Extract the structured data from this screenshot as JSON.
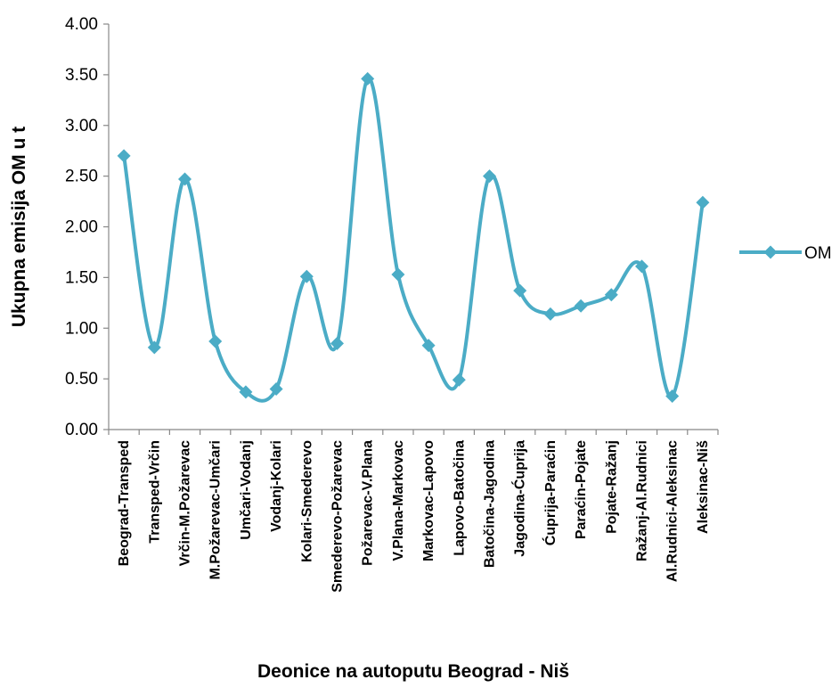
{
  "chart_data": {
    "type": "line",
    "title": "",
    "xlabel": "Deonice na autoputu Beograd - Niš",
    "ylabel": "Ukupna emisija OM u t",
    "ylim": [
      0,
      4
    ],
    "yticks": [
      "0.00",
      "0.50",
      "1.00",
      "1.50",
      "2.00",
      "2.50",
      "3.00",
      "3.50",
      "4.00"
    ],
    "grid": false,
    "smooth": true,
    "legend_position": "right",
    "categories": [
      "Beograd-Transped",
      "Transped-Vrčin",
      "Vrčin-M.Požarevac",
      "M.Požarevac-Umčari",
      "Umčari-Vodanj",
      "Vodanj-Kolari",
      "Kolari-Smederevo",
      "Smederevo-Požarevac",
      "Požarevac-V.Plana",
      "V.Plana-Markovac",
      "Markovac-Lapovo",
      "Lapovo-Batočina",
      "Batočina-Jagodina",
      "Jagodina-Ćuprija",
      "Ćuprija-Paraćin",
      "Paraćin-Pojate",
      "Pojate-Ražanj",
      "Ražanj-Al.Rudnici",
      "Al.Rudnici-Aleksinac",
      "Aleksinac-Niš"
    ],
    "series": [
      {
        "name": "OM",
        "color": "#4BACC6",
        "marker": "diamond",
        "values": [
          2.7,
          0.81,
          2.47,
          0.87,
          0.37,
          0.4,
          1.51,
          0.85,
          3.46,
          1.53,
          0.83,
          0.49,
          2.5,
          1.37,
          1.14,
          1.22,
          1.33,
          1.61,
          0.33,
          2.24
        ]
      }
    ]
  }
}
